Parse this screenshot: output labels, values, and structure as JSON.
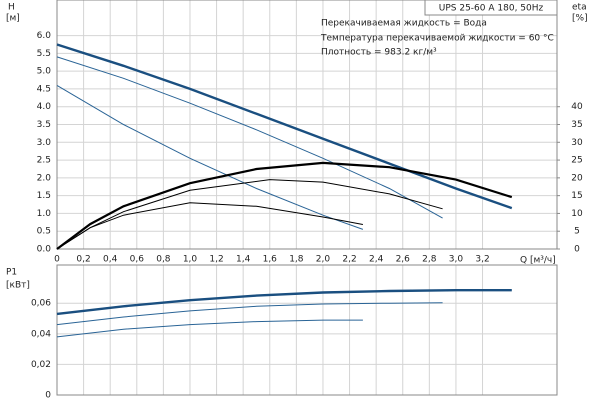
{
  "chart_data": [
    {
      "type": "line",
      "ylabel": "H",
      "yunit": "[м]",
      "y2label": "eta",
      "y2unit": "[%]",
      "model": "UPS 25-60 A 180, 50Hz",
      "notes": [
        "Перекачиваемая жидкость = Вода",
        "Температура перекачиваемой жидкости = 60 °C",
        "Плотность = 983.2 кг/м³"
      ],
      "xlabel": "Q [м³/ч]",
      "xlim": [
        0,
        3.76
      ],
      "ylim": [
        0,
        7
      ],
      "y2lim": [
        0,
        70
      ],
      "grid": true,
      "xticks": [
        0,
        {
          "value": 0.2,
          "label": "0,2"
        },
        {
          "value": 0.4,
          "label": "0,4"
        },
        {
          "value": 0.6,
          "label": "0,6"
        },
        {
          "value": 0.8,
          "label": "0,8"
        },
        {
          "value": 1.0,
          "label": "1,0"
        },
        {
          "value": 1.2,
          "label": "1,2"
        },
        {
          "value": 1.4,
          "label": "1,4"
        },
        {
          "value": 1.6,
          "label": "1,6"
        },
        {
          "value": 1.8,
          "label": "1,8"
        },
        {
          "value": 2.0,
          "label": "2,0"
        },
        {
          "value": 2.2,
          "label": "2,2"
        },
        {
          "value": 2.4,
          "label": "2,4"
        },
        {
          "value": 2.6,
          "label": "2,6"
        },
        {
          "value": 2.8,
          "label": "2,8"
        },
        {
          "value": 3.0,
          "label": "3,0"
        },
        {
          "value": 3.2,
          "label": "3,2"
        }
      ],
      "yticks": [
        {
          "value": 0,
          "label": "0.0"
        },
        0.5,
        {
          "value": 1,
          "label": "1.0"
        },
        1.5,
        {
          "value": 2,
          "label": "2.0"
        },
        2.5,
        {
          "value": 3,
          "label": "3.0"
        },
        3.5,
        {
          "value": 4,
          "label": "4.0"
        },
        4.5,
        {
          "value": 5,
          "label": "5.0"
        },
        5.5,
        {
          "value": 6,
          "label": "6.0"
        }
      ],
      "y2ticks": [
        0,
        5,
        10,
        15,
        20,
        25,
        30,
        35,
        40
      ],
      "series": [
        {
          "color": "#1a4f80",
          "line_width": 2.4,
          "x": [
            0,
            0.5,
            1,
            1.5,
            2,
            2.5,
            3,
            3.42
          ],
          "values": [
            5.75,
            5.15,
            4.5,
            3.8,
            3.1,
            2.4,
            1.7,
            1.15
          ]
        },
        {
          "color": "#2a6496",
          "line_width": 1,
          "x": [
            0,
            0.5,
            1,
            1.5,
            2,
            2.5,
            2.9
          ],
          "values": [
            5.4,
            4.8,
            4.1,
            3.35,
            2.55,
            1.7,
            0.87
          ]
        },
        {
          "color": "#2a6496",
          "line_width": 1,
          "x": [
            0,
            0.5,
            1,
            1.5,
            2,
            2.3
          ],
          "values": [
            4.6,
            3.5,
            2.55,
            1.7,
            0.95,
            0.55
          ]
        },
        {
          "color": "#000000",
          "line_width": 2.2,
          "axis": "y2",
          "x": [
            0,
            0.25,
            0.5,
            1,
            1.5,
            2,
            2.5,
            3,
            3.42
          ],
          "values": [
            0,
            7,
            12,
            18.5,
            22.5,
            24.2,
            23,
            19.5,
            14.6
          ]
        },
        {
          "color": "#000000",
          "line_width": 1,
          "axis": "y2",
          "x": [
            0,
            0.25,
            0.5,
            1,
            1.6,
            2,
            2.5,
            2.9
          ],
          "values": [
            0,
            6,
            10.5,
            16.5,
            19.5,
            18.8,
            15.5,
            11.3
          ]
        },
        {
          "color": "#000000",
          "line_width": 1,
          "axis": "y2",
          "x": [
            0,
            0.25,
            0.5,
            1,
            1.5,
            2,
            2.3
          ],
          "values": [
            0,
            6,
            9.5,
            13,
            12,
            9,
            6.9
          ]
        }
      ]
    },
    {
      "type": "line",
      "ylabel": "P1",
      "yunit": "[кВт]",
      "xlim": [
        0,
        3.76
      ],
      "ylim": [
        0,
        0.085
      ],
      "grid": true,
      "show_xtick_labels": false,
      "xticks": [
        0,
        0.2,
        0.4,
        0.6,
        0.8,
        1.0,
        1.2,
        1.4,
        1.6,
        1.8,
        2.0,
        2.2,
        2.4,
        2.6,
        2.8,
        3.0,
        3.2
      ],
      "yticks": [
        0,
        {
          "value": 0.02,
          "label": "0,02"
        },
        {
          "value": 0.04,
          "label": "0,04"
        },
        {
          "value": 0.06,
          "label": "0,06"
        }
      ],
      "series": [
        {
          "color": "#1a4f80",
          "line_width": 2.4,
          "x": [
            0,
            0.5,
            1,
            1.5,
            2,
            2.5,
            3,
            3.42
          ],
          "values": [
            0.053,
            0.058,
            0.062,
            0.065,
            0.067,
            0.068,
            0.0685,
            0.0685
          ]
        },
        {
          "color": "#2a6496",
          "line_width": 1,
          "x": [
            0,
            0.5,
            1,
            1.5,
            2,
            2.5,
            2.9
          ],
          "values": [
            0.046,
            0.051,
            0.055,
            0.058,
            0.0595,
            0.06,
            0.0603
          ]
        },
        {
          "color": "#2a6496",
          "line_width": 1,
          "x": [
            0,
            0.5,
            1,
            1.5,
            2,
            2.3
          ],
          "values": [
            0.038,
            0.043,
            0.046,
            0.048,
            0.049,
            0.049
          ]
        }
      ]
    }
  ]
}
